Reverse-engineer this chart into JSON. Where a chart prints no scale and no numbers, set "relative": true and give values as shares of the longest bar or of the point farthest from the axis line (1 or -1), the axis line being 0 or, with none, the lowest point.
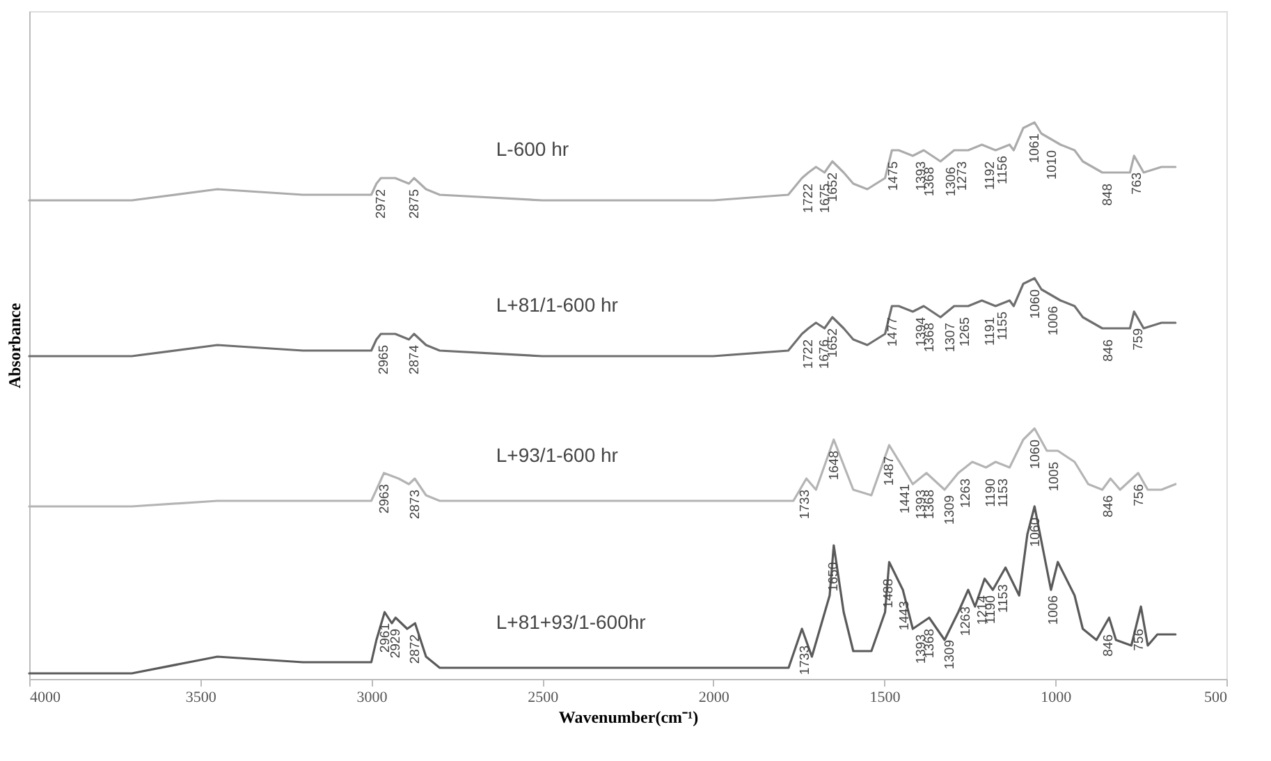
{
  "chart_data": {
    "type": "line",
    "relative": true,
    "xlabel": "Wavenumber(cm⁻¹)",
    "ylabel": "Absorbance",
    "xlim": [
      4000,
      500
    ],
    "xticks": [
      4000,
      3500,
      3000,
      2500,
      2000,
      1500,
      1000,
      500
    ],
    "grid": false,
    "marker": "none",
    "line_style": "solid",
    "x": [
      4000,
      3700,
      3450,
      3200,
      3000,
      2985,
      2972,
      2930,
      2890,
      2875,
      2840,
      2800,
      2500,
      2000,
      1781,
      1741,
      1722,
      1700,
      1675,
      1652,
      1619,
      1591,
      1550,
      1498,
      1478,
      1458,
      1417,
      1385,
      1336,
      1296,
      1255,
      1215,
      1175,
      1134,
      1122,
      1094,
      1061,
      1041,
      1013,
      985,
      944,
      920,
      863,
      823,
      782,
      770,
      742,
      690,
      649
    ],
    "series": [
      {
        "name": "L-600 hr",
        "color": "#ababab",
        "values": [
          0.86,
          0.86,
          0.88,
          0.87,
          0.87,
          0.89,
          0.9,
          0.9,
          0.89,
          0.9,
          0.88,
          0.87,
          0.86,
          0.86,
          0.87,
          0.9,
          0.91,
          0.92,
          0.91,
          0.93,
          0.91,
          0.89,
          0.88,
          0.9,
          0.95,
          0.95,
          0.94,
          0.95,
          0.93,
          0.95,
          0.95,
          0.96,
          0.95,
          0.96,
          0.95,
          0.99,
          1.0,
          0.98,
          0.97,
          0.96,
          0.95,
          0.93,
          0.91,
          0.91,
          0.91,
          0.94,
          0.91,
          0.92,
          0.92
        ]
      },
      {
        "name": "L+81/1-600 hr",
        "color": "#6e6e6e",
        "values": [
          0.58,
          0.58,
          0.6,
          0.59,
          0.59,
          0.61,
          0.62,
          0.62,
          0.61,
          0.62,
          0.6,
          0.59,
          0.58,
          0.58,
          0.59,
          0.62,
          0.63,
          0.64,
          0.63,
          0.65,
          0.63,
          0.61,
          0.6,
          0.62,
          0.67,
          0.67,
          0.66,
          0.67,
          0.65,
          0.67,
          0.67,
          0.68,
          0.67,
          0.68,
          0.67,
          0.71,
          0.72,
          0.7,
          0.69,
          0.68,
          0.67,
          0.65,
          0.63,
          0.63,
          0.63,
          0.66,
          0.63,
          0.64,
          0.64
        ]
      },
      {
        "name": "L+93/1-600 hr",
        "color": "#b4b4b4",
        "x": [
          4000,
          3700,
          3450,
          3000,
          2985,
          2963,
          2920,
          2890,
          2873,
          2840,
          2800,
          2000,
          1766,
          1728,
          1700,
          1648,
          1591,
          1538,
          1486,
          1446,
          1417,
          1377,
          1324,
          1284,
          1243,
          1203,
          1175,
          1134,
          1094,
          1061,
          1025,
          993,
          944,
          904,
          863,
          839,
          811,
          758,
          730,
          690,
          649
        ],
        "values": [
          0.31,
          0.31,
          0.32,
          0.32,
          0.34,
          0.37,
          0.36,
          0.35,
          0.36,
          0.33,
          0.32,
          0.32,
          0.32,
          0.36,
          0.34,
          0.43,
          0.34,
          0.33,
          0.42,
          0.38,
          0.35,
          0.37,
          0.34,
          0.37,
          0.39,
          0.38,
          0.39,
          0.38,
          0.43,
          0.45,
          0.41,
          0.41,
          0.39,
          0.35,
          0.34,
          0.36,
          0.34,
          0.37,
          0.34,
          0.34,
          0.35
        ]
      },
      {
        "name": "L+81+93/1-600hr",
        "color": "#5a5a5a",
        "x": [
          4000,
          3700,
          3450,
          3200,
          3000,
          2985,
          2961,
          2940,
          2929,
          2895,
          2872,
          2840,
          2800,
          2500,
          2000,
          1780,
          1741,
          1712,
          1660,
          1648,
          1619,
          1591,
          1538,
          1498,
          1486,
          1446,
          1417,
          1369,
          1324,
          1284,
          1255,
          1235,
          1207,
          1183,
          1146,
          1106,
          1082,
          1061,
          1013,
          993,
          944,
          920,
          880,
          843,
          823,
          778,
          750,
          730,
          702,
          649
        ],
        "values": [
          0.01,
          0.01,
          0.04,
          0.03,
          0.03,
          0.07,
          0.12,
          0.1,
          0.11,
          0.09,
          0.1,
          0.04,
          0.02,
          0.02,
          0.02,
          0.02,
          0.09,
          0.04,
          0.15,
          0.24,
          0.12,
          0.05,
          0.05,
          0.12,
          0.21,
          0.16,
          0.09,
          0.11,
          0.07,
          0.12,
          0.16,
          0.13,
          0.18,
          0.16,
          0.2,
          0.15,
          0.26,
          0.31,
          0.16,
          0.21,
          0.15,
          0.09,
          0.07,
          0.11,
          0.07,
          0.06,
          0.13,
          0.06,
          0.08,
          0.08
        ]
      }
    ],
    "annotations": [
      {
        "text": "2972",
        "x": 2972,
        "y": 0.9
      },
      {
        "text": "2875",
        "x": 2875,
        "y": 0.9
      },
      {
        "text": "1722",
        "x": 1722,
        "y": 0.91
      },
      {
        "text": "1675",
        "x": 1675,
        "y": 0.91
      },
      {
        "text": "1652",
        "x": 1652,
        "y": 0.93
      },
      {
        "text": "1475",
        "x": 1475,
        "y": 0.95
      },
      {
        "text": "1393",
        "x": 1393,
        "y": 0.95
      },
      {
        "text": "1368",
        "x": 1368,
        "y": 0.94
      },
      {
        "text": "1306",
        "x": 1306,
        "y": 0.94
      },
      {
        "text": "1273",
        "x": 1273,
        "y": 0.95
      },
      {
        "text": "1192",
        "x": 1192,
        "y": 0.95
      },
      {
        "text": "1156",
        "x": 1156,
        "y": 0.96
      },
      {
        "text": "1061",
        "x": 1061,
        "y": 1.0
      },
      {
        "text": "1010",
        "x": 1010,
        "y": 0.97
      },
      {
        "text": "848",
        "x": 848,
        "y": 0.91
      },
      {
        "text": "763",
        "x": 763,
        "y": 0.93
      },
      {
        "text": "2965",
        "x": 2965,
        "y": 0.62
      },
      {
        "text": "2874",
        "x": 2874,
        "y": 0.62
      },
      {
        "text": "1722",
        "x": 1722,
        "y": 0.63
      },
      {
        "text": "1676",
        "x": 1676,
        "y": 0.63
      },
      {
        "text": "1652",
        "x": 1652,
        "y": 0.65
      },
      {
        "text": "1477",
        "x": 1477,
        "y": 0.67
      },
      {
        "text": "1394",
        "x": 1394,
        "y": 0.67
      },
      {
        "text": "1368",
        "x": 1368,
        "y": 0.66
      },
      {
        "text": "1307",
        "x": 1307,
        "y": 0.66
      },
      {
        "text": "1265",
        "x": 1265,
        "y": 0.67
      },
      {
        "text": "1191",
        "x": 1191,
        "y": 0.67
      },
      {
        "text": "1155",
        "x": 1155,
        "y": 0.68
      },
      {
        "text": "1060",
        "x": 1060,
        "y": 0.72
      },
      {
        "text": "1006",
        "x": 1006,
        "y": 0.69
      },
      {
        "text": "846",
        "x": 846,
        "y": 0.63
      },
      {
        "text": "759",
        "x": 759,
        "y": 0.65
      },
      {
        "text": "2963",
        "x": 2963,
        "y": 0.37
      },
      {
        "text": "2873",
        "x": 2873,
        "y": 0.36
      },
      {
        "text": "1733",
        "x": 1733,
        "y": 0.36
      },
      {
        "text": "1648",
        "x": 1648,
        "y": 0.43
      },
      {
        "text": "1487",
        "x": 1487,
        "y": 0.42
      },
      {
        "text": "1441",
        "x": 1441,
        "y": 0.37
      },
      {
        "text": "1393",
        "x": 1393,
        "y": 0.36
      },
      {
        "text": "1368",
        "x": 1368,
        "y": 0.36
      },
      {
        "text": "1309",
        "x": 1309,
        "y": 0.35
      },
      {
        "text": "1263",
        "x": 1263,
        "y": 0.38
      },
      {
        "text": "1190",
        "x": 1190,
        "y": 0.38
      },
      {
        "text": "1153",
        "x": 1153,
        "y": 0.38
      },
      {
        "text": "1060",
        "x": 1060,
        "y": 0.45
      },
      {
        "text": "1005",
        "x": 1005,
        "y": 0.41
      },
      {
        "text": "846",
        "x": 846,
        "y": 0.35
      },
      {
        "text": "756",
        "x": 756,
        "y": 0.37
      },
      {
        "text": "2961",
        "x": 2961,
        "y": 0.12
      },
      {
        "text": "2929",
        "x": 2929,
        "y": 0.11
      },
      {
        "text": "2872",
        "x": 2872,
        "y": 0.1
      },
      {
        "text": "1733",
        "x": 1733,
        "y": 0.08
      },
      {
        "text": "1650",
        "x": 1650,
        "y": 0.23
      },
      {
        "text": "1488",
        "x": 1488,
        "y": 0.2
      },
      {
        "text": "1443",
        "x": 1443,
        "y": 0.16
      },
      {
        "text": "1393",
        "x": 1393,
        "y": 0.1
      },
      {
        "text": "1368",
        "x": 1368,
        "y": 0.11
      },
      {
        "text": "1309",
        "x": 1309,
        "y": 0.09
      },
      {
        "text": "1263",
        "x": 1263,
        "y": 0.15
      },
      {
        "text": "1214",
        "x": 1214,
        "y": 0.17
      },
      {
        "text": "1190",
        "x": 1190,
        "y": 0.17
      },
      {
        "text": "1153",
        "x": 1153,
        "y": 0.19
      },
      {
        "text": "1060",
        "x": 1060,
        "y": 0.31
      },
      {
        "text": "1006",
        "x": 1006,
        "y": 0.17
      },
      {
        "text": "846",
        "x": 846,
        "y": 0.1
      },
      {
        "text": "756",
        "x": 756,
        "y": 0.11
      }
    ]
  }
}
